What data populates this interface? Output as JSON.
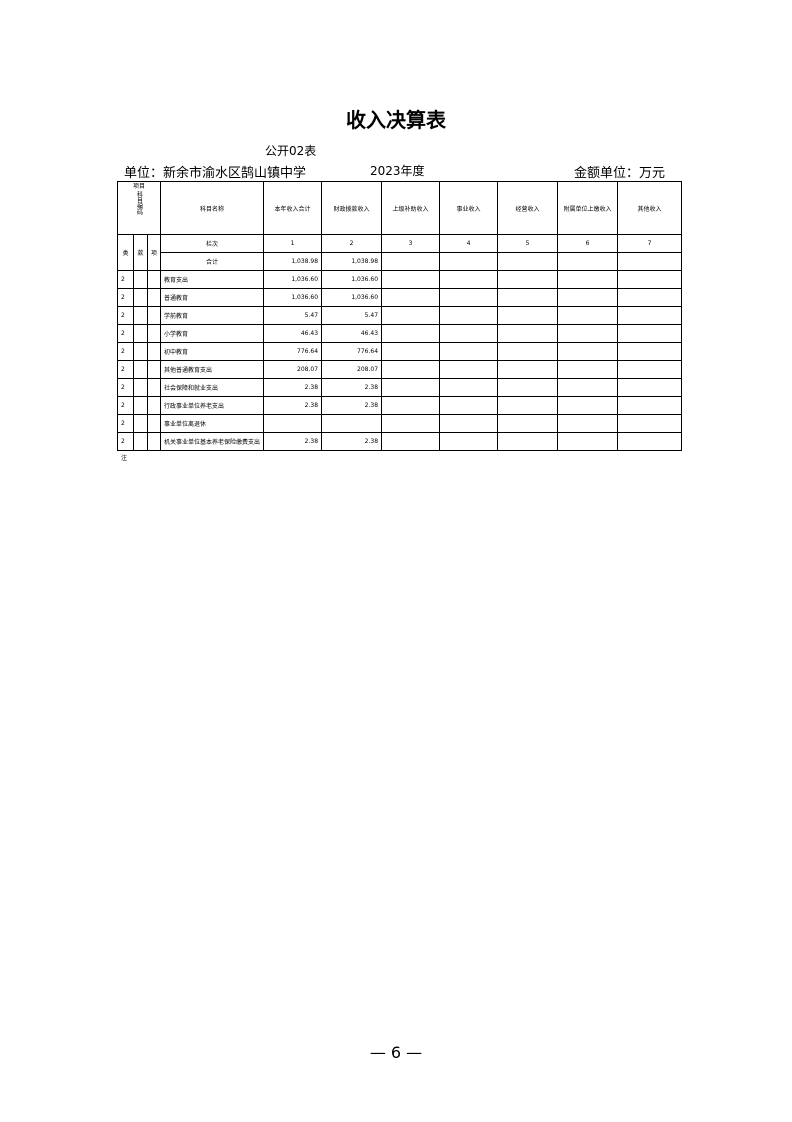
{
  "title": "收入决算表",
  "subtitle": "公开02表",
  "unit": "单位：新余市渝水区鹄山镇中学",
  "year": "2023年度",
  "money_unit": "金额单位：万元",
  "headers": {
    "item": "项目",
    "code": "科目编码",
    "name": "科目名称",
    "cols": [
      "本年收入合计",
      "财政拨款收入",
      "上级补助收入",
      "事业收入",
      "经营收入",
      "附属单位上缴收入",
      "其他收入"
    ],
    "lei": "类",
    "kuan": "款",
    "xiang": "项"
  },
  "index_row": {
    "label": "栏次",
    "nums": [
      "1",
      "2",
      "3",
      "4",
      "5",
      "6",
      "7"
    ]
  },
  "total_row": {
    "label": "合计",
    "values": [
      "1,038.98",
      "1,038.98"
    ]
  },
  "rows": [
    {
      "code": "2",
      "name": "教育支出",
      "v1": "1,036.60",
      "v2": "1,036.60"
    },
    {
      "code": "2",
      "name": "普通教育",
      "v1": "1,036.60",
      "v2": "1,036.60"
    },
    {
      "code": "2",
      "name": "学前教育",
      "v1": "5.47",
      "v2": "5.47"
    },
    {
      "code": "2",
      "name": "小学教育",
      "v1": "46.43",
      "v2": "46.43"
    },
    {
      "code": "2",
      "name": "初中教育",
      "v1": "776.64",
      "v2": "776.64"
    },
    {
      "code": "2",
      "name": "其他普通教育支出",
      "v1": "208.07",
      "v2": "208.07"
    },
    {
      "code": "2",
      "name": "社会保障和就业支出",
      "v1": "2.38",
      "v2": "2.38"
    },
    {
      "code": "2",
      "name": "行政事业单位养老支出",
      "v1": "2.38",
      "v2": "2.38"
    },
    {
      "code": "2",
      "name": "事业单位离退休",
      "v1": "",
      "v2": ""
    },
    {
      "code": "2",
      "name": "机关事业单位基本养老保险缴费支出",
      "v1": "2.38",
      "v2": "2.38"
    }
  ],
  "note": "注",
  "page_number": "— 6 —"
}
